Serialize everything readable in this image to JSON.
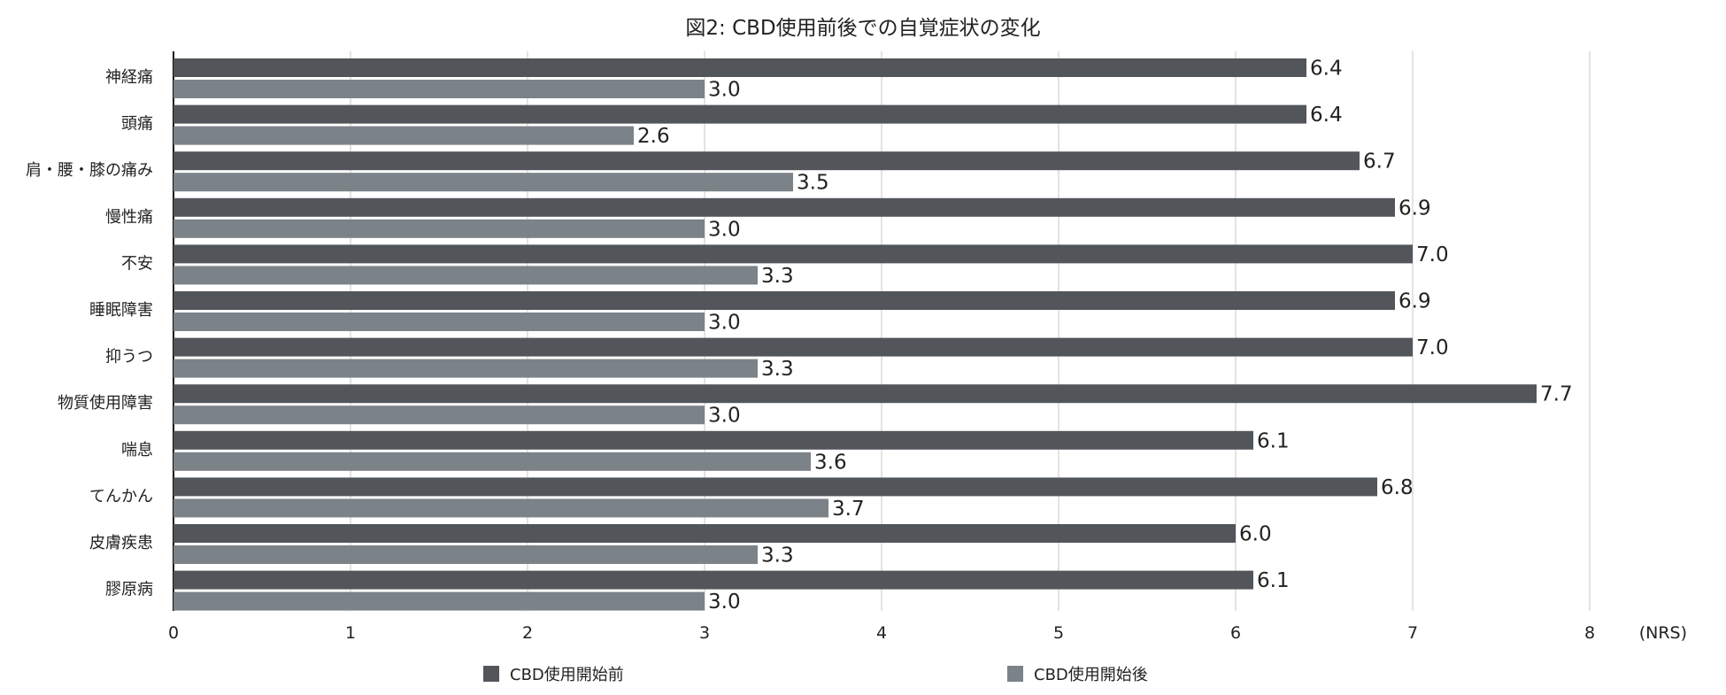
{
  "chart_data": {
    "type": "bar",
    "orientation": "horizontal",
    "title": "図2: CBD使用前後での自覚症状の変化",
    "xlabel": "(NRS)",
    "ylabel": "",
    "xlim": [
      0,
      8
    ],
    "x_ticks": [
      "0",
      "1",
      "2",
      "3",
      "4",
      "5",
      "6",
      "7",
      "8"
    ],
    "grid": true,
    "legend_position": "bottom",
    "categories": [
      "神経痛",
      "頭痛",
      "肩・腰・膝の痛み",
      "慢性痛",
      "不安",
      "睡眠障害",
      "抑うつ",
      "物質使用障害",
      "喘息",
      "てんかん",
      "皮膚疾患",
      "膠原病"
    ],
    "series": [
      {
        "name": "CBD使用開始前",
        "color": "#52565b",
        "values": [
          6.4,
          6.4,
          6.7,
          6.9,
          7.0,
          6.9,
          7.0,
          7.7,
          6.1,
          6.8,
          6.0,
          6.1
        ],
        "labels": [
          "6.4",
          "6.4",
          "6.7",
          "6.9",
          "7.0",
          "6.9",
          "7.0",
          "7.7",
          "6.1",
          "6.8",
          "6.0",
          "6.1"
        ]
      },
      {
        "name": "CBD使用開始後",
        "color": "#7b8288",
        "values": [
          3.0,
          2.6,
          3.5,
          3.0,
          3.3,
          3.0,
          3.3,
          3.0,
          3.6,
          3.7,
          3.3,
          3.0
        ],
        "labels": [
          "3.0",
          "2.6",
          "3.5",
          "3.0",
          "3.3",
          "3.0",
          "3.3",
          "3.0",
          "3.6",
          "3.7",
          "3.3",
          "3.0"
        ]
      }
    ]
  }
}
